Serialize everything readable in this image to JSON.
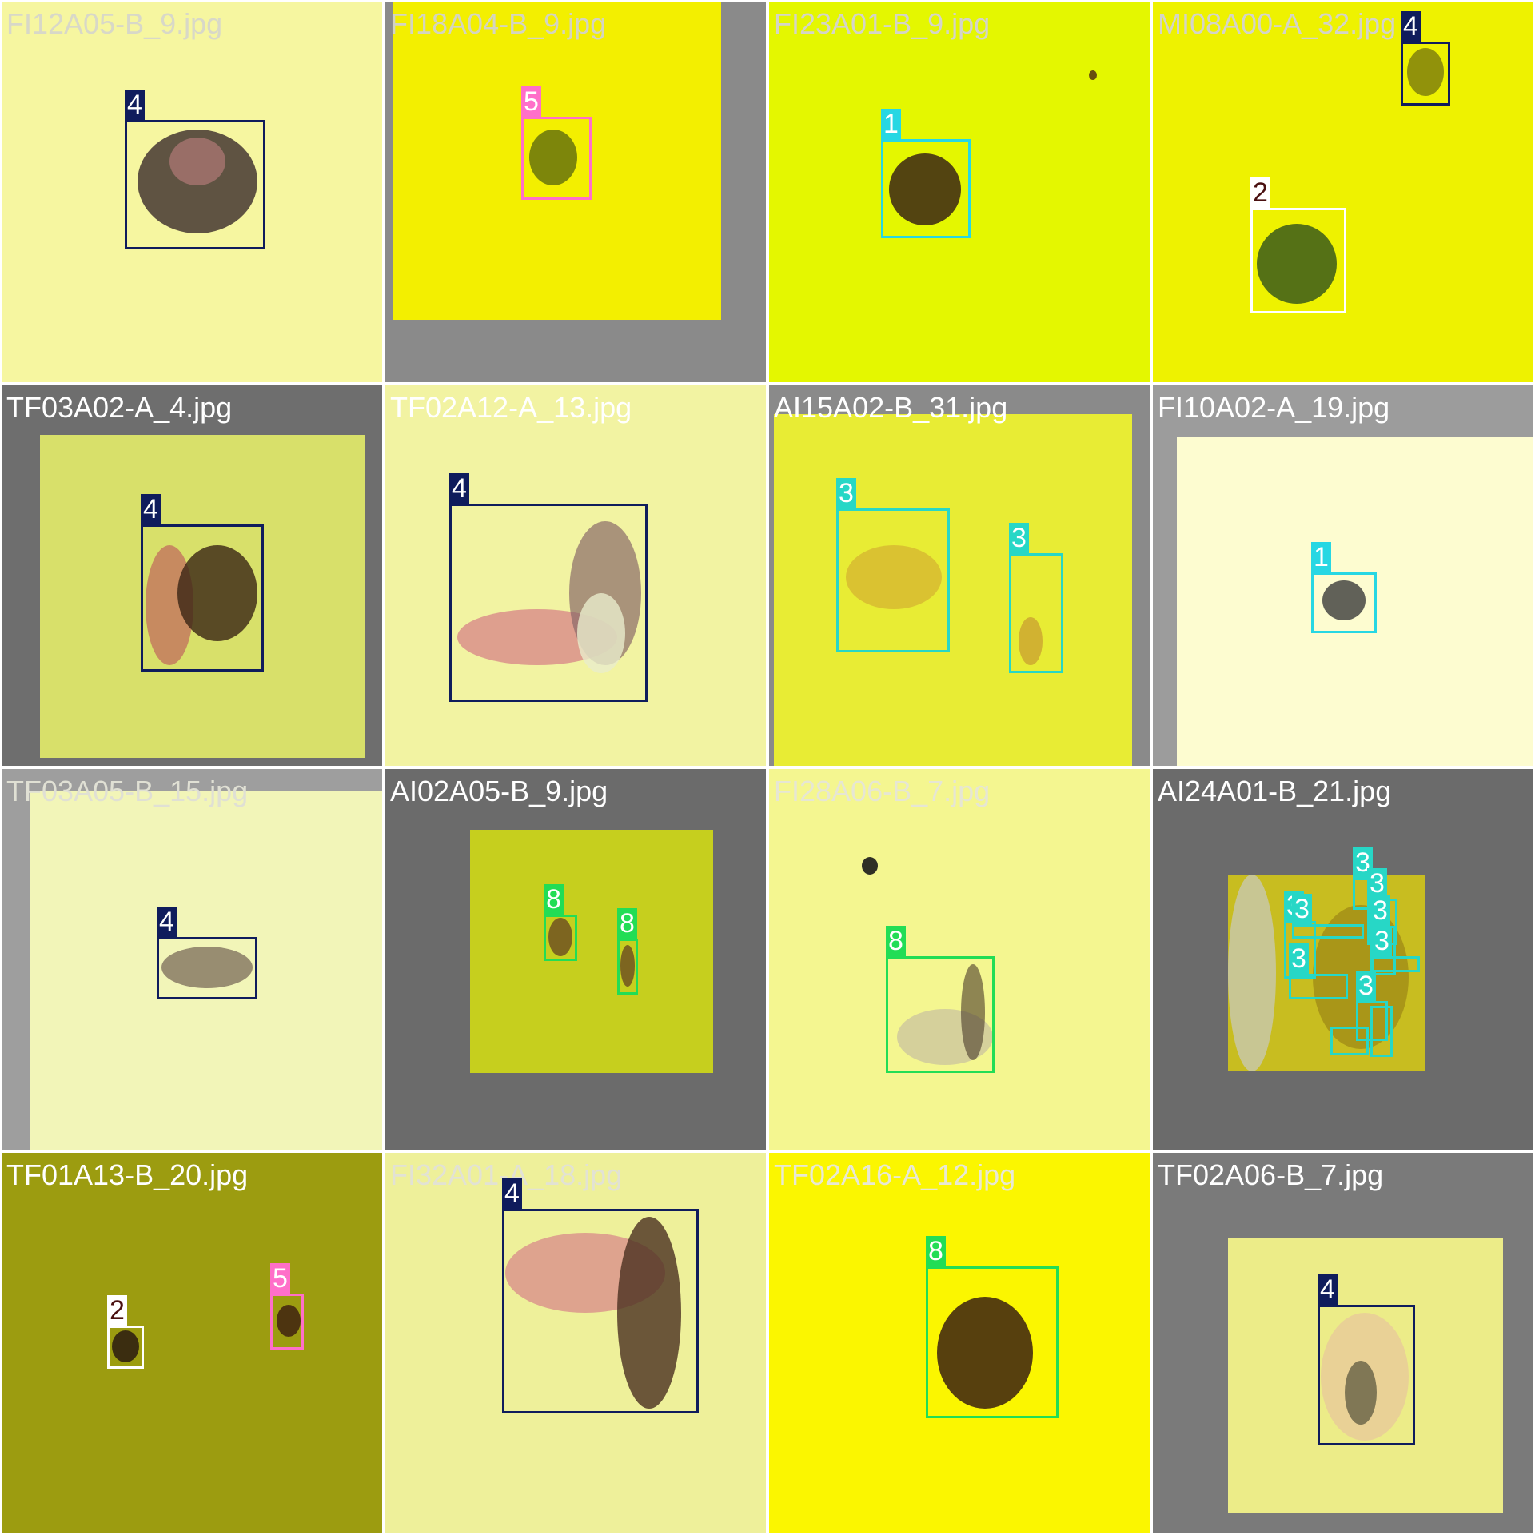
{
  "class_colors": {
    "1": "#27d7e3",
    "2": "#ffffff",
    "3": "#27d7c6",
    "4": "#0f1c5c",
    "5": "#ff6fc9",
    "8": "#22dd55"
  },
  "tiles": [
    {
      "filename": "FI12A05-B_9.jpg",
      "bg": "#f6f6a0",
      "frame": "#f6f6a0",
      "title_color": "#d8d8c8",
      "labels": [
        {
          "cls": "4",
          "text": "4"
        }
      ]
    },
    {
      "filename": "FI18A04-B_9.jpg",
      "bg": "#f3ef00",
      "frame": "#8a8a8a",
      "title_color": "#d4d4c0",
      "labels": [
        {
          "cls": "5",
          "text": "5"
        }
      ]
    },
    {
      "filename": "FI23A01-B_9.jpg",
      "bg": "#e4f700",
      "frame": "#e4f700",
      "title_color": "#d4d4c8",
      "labels": [
        {
          "cls": "1",
          "text": "1"
        }
      ]
    },
    {
      "filename": "MI08A00-A_32.jpg",
      "bg": "#eef200",
      "frame": "#eef200",
      "title_color": "#d4d4c8",
      "labels": [
        {
          "cls": "4",
          "text": "4"
        },
        {
          "cls": "2",
          "text": "2"
        }
      ]
    },
    {
      "filename": "TF03A02-A_4.jpg",
      "bg": "#d8e06a",
      "frame": "#6e6e6e",
      "title_color": "#ffffff",
      "labels": [
        {
          "cls": "4",
          "text": "4"
        }
      ]
    },
    {
      "filename": "TF02A12-A_13.jpg",
      "bg": "#f2f3a2",
      "frame": "#f2f3a2",
      "title_color": "#ffffff",
      "labels": [
        {
          "cls": "4",
          "text": "4"
        }
      ]
    },
    {
      "filename": "AI15A02-B_31.jpg",
      "bg": "#e8ec34",
      "frame": "#8a8a8a",
      "title_color": "#ffffff",
      "labels": [
        {
          "cls": "3",
          "text": "3"
        },
        {
          "cls": "3",
          "text": "3"
        }
      ]
    },
    {
      "filename": "FI10A02-A_19.jpg",
      "bg": "#fdfcd0",
      "frame": "#9c9c9c",
      "title_color": "#ffffff",
      "labels": [
        {
          "cls": "1",
          "text": "1"
        }
      ]
    },
    {
      "filename": "TF03A05-B_15.jpg",
      "bg": "#f2f5b8",
      "frame": "#9e9e9e",
      "title_color": "#e0e0d4",
      "labels": [
        {
          "cls": "4",
          "text": "4"
        }
      ]
    },
    {
      "filename": "AI02A05-B_9.jpg",
      "bg": "#c6cf1e",
      "frame": "#6b6b6b",
      "title_color": "#ffffff",
      "labels": [
        {
          "cls": "8",
          "text": "8"
        },
        {
          "cls": "8",
          "text": "8"
        }
      ]
    },
    {
      "filename": "FI28A06-B_7.jpg",
      "bg": "#f4f690",
      "frame": "#f4f690",
      "title_color": "#e6e6d4",
      "labels": [
        {
          "cls": "8",
          "text": "8"
        }
      ]
    },
    {
      "filename": "AI24A01-B_21.jpg",
      "bg": "#c8bd20",
      "frame": "#6b6b6b",
      "title_color": "#ffffff",
      "labels": [
        {
          "cls": "3",
          "text": "3"
        },
        {
          "cls": "3",
          "text": "3"
        },
        {
          "cls": "3",
          "text": "3"
        },
        {
          "cls": "3",
          "text": "3"
        },
        {
          "cls": "3",
          "text": "3"
        },
        {
          "cls": "3",
          "text": "3"
        },
        {
          "cls": "3",
          "text": "3"
        },
        {
          "cls": "3",
          "text": "3"
        }
      ]
    },
    {
      "filename": "TF01A13-B_20.jpg",
      "bg": "#9c9c10",
      "frame": "#555555",
      "title_color": "#ffffff",
      "labels": [
        {
          "cls": "2",
          "text": "2"
        },
        {
          "cls": "5",
          "text": "5"
        }
      ]
    },
    {
      "filename": "FI32A01-A_18.jpg",
      "bg": "#eef09a",
      "frame": "#eef09a",
      "title_color": "#e2e2d4",
      "labels": [
        {
          "cls": "4",
          "text": "4"
        }
      ]
    },
    {
      "filename": "TF02A16-A_12.jpg",
      "bg": "#fbf600",
      "frame": "#fbf600",
      "title_color": "#e8e8d4",
      "labels": [
        {
          "cls": "8",
          "text": "8"
        }
      ]
    },
    {
      "filename": "TF02A06-B_7.jpg",
      "bg": "#ecec88",
      "frame": "#7a7a7a",
      "title_color": "#ffffff",
      "labels": [
        {
          "cls": "4",
          "text": "4"
        }
      ]
    }
  ]
}
